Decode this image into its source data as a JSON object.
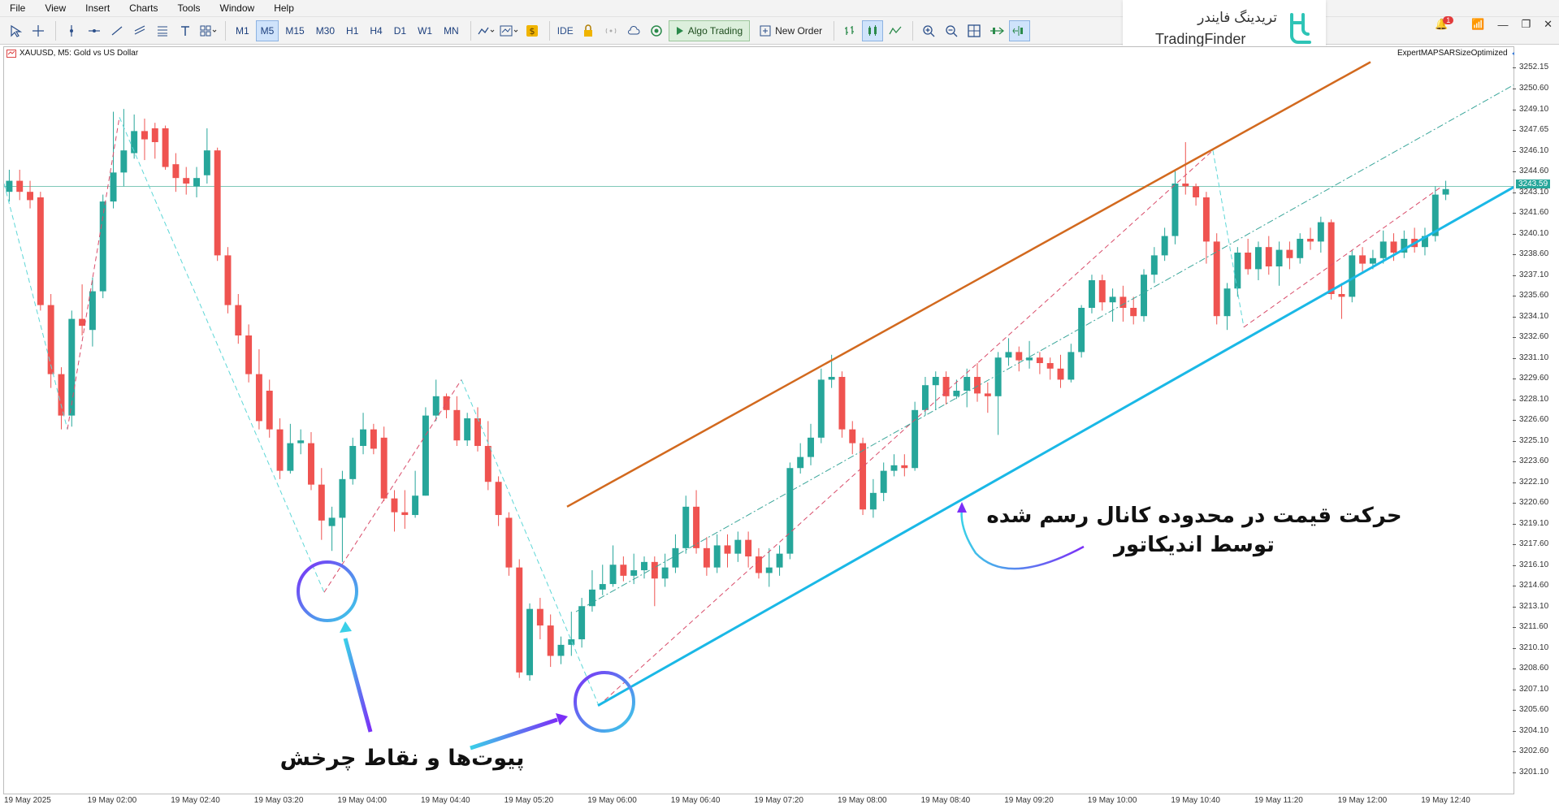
{
  "menu": [
    "File",
    "View",
    "Insert",
    "Charts",
    "Tools",
    "Window",
    "Help"
  ],
  "timeframes": [
    "M1",
    "M5",
    "M15",
    "M30",
    "H1",
    "H4",
    "D1",
    "W1",
    "MN"
  ],
  "active_timeframe": "M5",
  "toolbar": {
    "ide_label": "IDE",
    "algo_label": "Algo Trading",
    "order_label": "New Order"
  },
  "logo": {
    "fa": "تریدینگ فایندر",
    "en": "TradingFinder"
  },
  "notification_count": "1",
  "chart": {
    "symbol_label": "XAUUSD, M5:  Gold vs US Dollar",
    "ea_label": "ExpertMAPSARSizeOptimized",
    "current_price": "3243.59",
    "y_ticks": [
      "3252.15",
      "3250.60",
      "3249.10",
      "3247.65",
      "3246.10",
      "3244.60",
      "3243.10",
      "3241.60",
      "3240.10",
      "3238.60",
      "3237.10",
      "3235.60",
      "3234.10",
      "3232.60",
      "3231.10",
      "3229.60",
      "3228.10",
      "3226.60",
      "3225.10",
      "3223.60",
      "3222.10",
      "3220.60",
      "3219.10",
      "3217.60",
      "3216.10",
      "3214.60",
      "3213.10",
      "3211.60",
      "3210.10",
      "3208.60",
      "3207.10",
      "3205.60",
      "3204.10",
      "3202.60",
      "3201.10"
    ],
    "x_ticks": [
      "19 May 2025",
      "19 May 02:00",
      "19 May 02:40",
      "19 May 03:20",
      "19 May 04:00",
      "19 May 04:40",
      "19 May 05:20",
      "19 May 06:00",
      "19 May 06:40",
      "19 May 07:20",
      "19 May 08:00",
      "19 May 08:40",
      "19 May 09:20",
      "19 May 10:00",
      "19 May 10:40",
      "19 May 11:20",
      "19 May 12:00",
      "19 May 12:40"
    ],
    "colors": {
      "bull": "#26a69a",
      "bear": "#ef5350",
      "upper_channel": "#d2691e",
      "lower_channel": "#1ab8e6",
      "price_line": "#7fc8b8"
    }
  },
  "annotations": {
    "channel_text_line1": "حرکت قیمت در محدوده کانال رسم شده",
    "channel_text_line2": "توسط اندیکاتور",
    "pivot_text": "پیوت‌ها و نقاط چرخش"
  }
}
